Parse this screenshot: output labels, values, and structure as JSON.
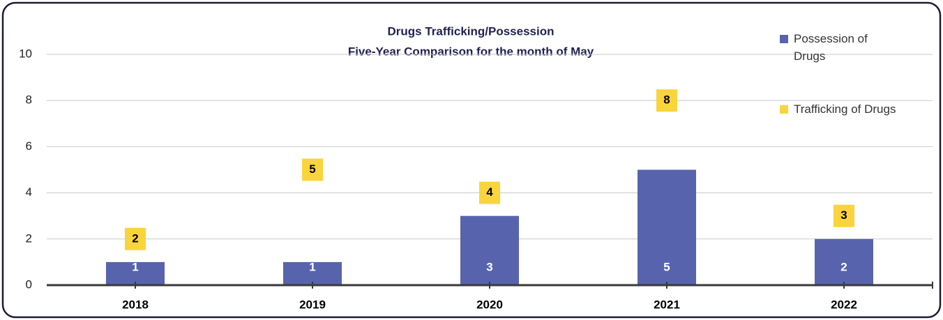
{
  "chart_data": {
    "type": "bar",
    "title": "Drugs Trafficking/Possession",
    "subtitle": "Five-Year Comparison for the month of May",
    "categories": [
      "2018",
      "2019",
      "2020",
      "2021",
      "2022"
    ],
    "series": [
      {
        "name": "Possession of Drugs",
        "color": "#5764ad",
        "values": [
          1,
          1,
          3,
          5,
          2
        ]
      },
      {
        "name": "Trafficking of Drugs",
        "color": "#fad43c",
        "values": [
          2,
          5,
          4,
          8,
          3
        ]
      }
    ],
    "ylim": [
      0,
      10
    ],
    "yticks": [
      0,
      2,
      4,
      6,
      8,
      10
    ],
    "grid": true,
    "legend": "right"
  }
}
